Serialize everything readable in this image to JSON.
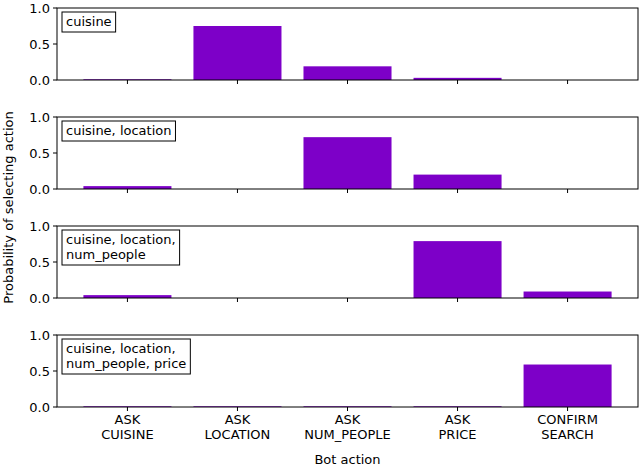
{
  "chart_data": [
    {
      "type": "bar",
      "annotation": "cuisine",
      "categories": [
        "ASK CUISINE",
        "ASK LOCATION",
        "ASK NUM_PEOPLE",
        "ASK PRICE",
        "CONFIRM SEARCH"
      ],
      "values": [
        0.01,
        0.75,
        0.19,
        0.03,
        0.0
      ],
      "color": "#7d00c8",
      "ylim": [
        0,
        1
      ],
      "yticks": [
        {
          "value": 0,
          "label": "0.0"
        },
        {
          "value": 0.5,
          "label": "0.5"
        },
        {
          "value": 1,
          "label": "1.0"
        }
      ],
      "tick_labels": "y"
    },
    {
      "type": "bar",
      "annotation": "cuisine, location",
      "categories": [
        "ASK CUISINE",
        "ASK LOCATION",
        "ASK NUM_PEOPLE",
        "ASK PRICE",
        "CONFIRM SEARCH"
      ],
      "values": [
        0.04,
        0.0,
        0.72,
        0.2,
        0.0
      ],
      "color": "#7d00c8",
      "ylim": [
        0,
        1
      ],
      "yticks": [
        {
          "value": 0,
          "label": "0.0"
        },
        {
          "value": 0.5,
          "label": "0.5"
        },
        {
          "value": 1,
          "label": "1.0"
        }
      ],
      "tick_labels": "y"
    },
    {
      "type": "bar",
      "annotation": "cuisine, location, num_people",
      "categories": [
        "ASK CUISINE",
        "ASK LOCATION",
        "ASK NUM_PEOPLE",
        "ASK PRICE",
        "CONFIRM SEARCH"
      ],
      "values": [
        0.04,
        0.0,
        0.0,
        0.79,
        0.09
      ],
      "color": "#7d00c8",
      "ylim": [
        0,
        1
      ],
      "yticks": [
        {
          "value": 0,
          "label": "0.0"
        },
        {
          "value": 0.5,
          "label": "0.5"
        },
        {
          "value": 1,
          "label": "1.0"
        }
      ],
      "tick_labels": "y"
    },
    {
      "type": "bar",
      "annotation": "cuisine, location, num_people, price",
      "categories": [
        "ASK CUISINE",
        "ASK LOCATION",
        "ASK NUM_PEOPLE",
        "ASK PRICE",
        "CONFIRM SEARCH"
      ],
      "values": [
        0.01,
        0.01,
        0.01,
        0.01,
        0.59
      ],
      "color": "#7d00c8",
      "ylim": [
        0,
        1
      ],
      "yticks": [
        {
          "value": 0,
          "label": "0.0"
        },
        {
          "value": 0.5,
          "label": "0.5"
        },
        {
          "value": 1,
          "label": "1.0"
        }
      ],
      "tick_labels": true
    }
  ],
  "xlabel": "Bot action",
  "ylabel": "Probability of selecting action"
}
